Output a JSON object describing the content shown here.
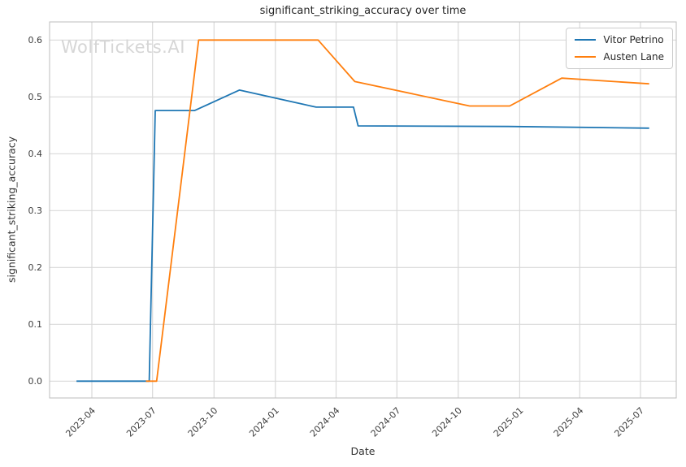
{
  "title": "significant_striking_accuracy over time",
  "watermark": "WolfTickets.AI",
  "chart_data": {
    "type": "line",
    "title": "significant_striking_accuracy over time",
    "xlabel": "Date",
    "ylabel": "significant_striking_accuracy",
    "grid": true,
    "legend_position": "upper right",
    "x_tick_labels": [
      "2023-04",
      "2023-07",
      "2023-10",
      "2024-01",
      "2024-04",
      "2024-07",
      "2024-10",
      "2025-01",
      "2025-04",
      "2025-07"
    ],
    "y_ticks": [
      0.0,
      0.1,
      0.2,
      0.3,
      0.4,
      0.5,
      0.6
    ],
    "y_tick_labels": [
      "0.0",
      "0.1",
      "0.2",
      "0.3",
      "0.4",
      "0.5",
      "0.6"
    ],
    "ylim": [
      -0.03,
      0.632
    ],
    "xlim": [
      "2023-01-28",
      "2025-08-24"
    ],
    "series": [
      {
        "name": "Vitor Petrino",
        "color": "#1f77b4",
        "points": [
          [
            "2023-03-09",
            0.0
          ],
          [
            "2023-06-26",
            0.0
          ],
          [
            "2023-07-05",
            0.476
          ],
          [
            "2023-09-02",
            0.476
          ],
          [
            "2023-11-08",
            0.512
          ],
          [
            "2024-03-02",
            0.482
          ],
          [
            "2024-04-27",
            0.482
          ],
          [
            "2024-05-04",
            0.449
          ],
          [
            "2024-12-15",
            0.448
          ],
          [
            "2025-07-14",
            0.445
          ]
        ]
      },
      {
        "name": "Austen Lane",
        "color": "#ff7f0e",
        "points": [
          [
            "2023-06-21",
            0.0
          ],
          [
            "2023-07-07",
            0.0
          ],
          [
            "2023-09-08",
            0.6
          ],
          [
            "2024-03-05",
            0.6
          ],
          [
            "2024-04-29",
            0.527
          ],
          [
            "2024-10-18",
            0.484
          ],
          [
            "2024-12-17",
            0.484
          ],
          [
            "2025-03-05",
            0.533
          ],
          [
            "2025-07-14",
            0.523
          ]
        ]
      }
    ],
    "style": {
      "grid_color": "#d9d9d9",
      "spine_color": "#bdbdbd",
      "tick_label_color": "#3d3d3d",
      "background": "#ffffff"
    }
  }
}
